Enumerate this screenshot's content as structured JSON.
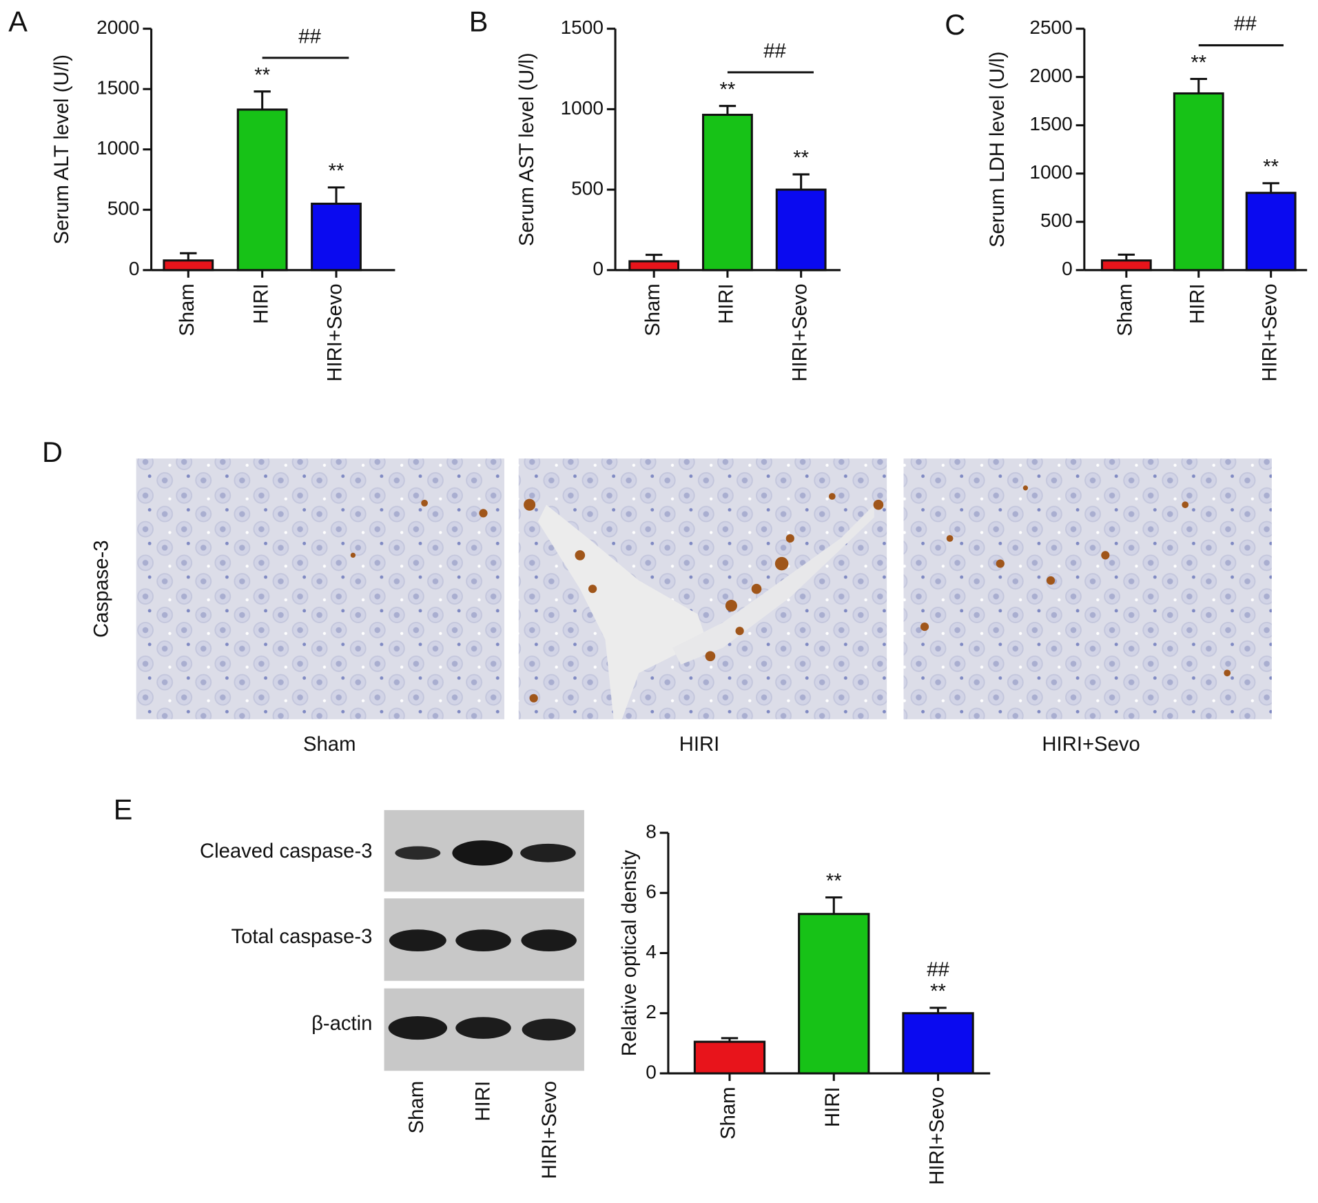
{
  "panels": [
    "A",
    "B",
    "C",
    "D",
    "E"
  ],
  "histology": {
    "row_label": "Caspase-3",
    "groups": [
      "Sham",
      "HIRI",
      "HIRI+Sevo"
    ]
  },
  "blot": {
    "rows": [
      "Cleaved caspase-3",
      "Total caspase-3",
      "β-actin"
    ],
    "lanes": [
      "Sham",
      "HIRI",
      "HIRI+Sevo"
    ]
  },
  "chart_data": [
    {
      "type": "bar",
      "ylabel": "Serum ALT level (U/l)",
      "categories": [
        "Sham",
        "HIRI",
        "HIRI+Sevo"
      ],
      "values": [
        80,
        1330,
        550
      ],
      "errors": [
        60,
        150,
        135
      ],
      "colors": [
        "#e8141b",
        "#17c217",
        "#0a0af0"
      ],
      "ylim": [
        0,
        2000
      ],
      "yticks": [
        0,
        500,
        1000,
        1500,
        2000
      ],
      "annotations": [
        null,
        "**",
        "**"
      ],
      "bracket": {
        "label": "##",
        "categories": [
          "HIRI",
          "HIRI+Sevo"
        ]
      }
    },
    {
      "type": "bar",
      "ylabel": "Serum AST level (U/l)",
      "categories": [
        "Sham",
        "HIRI",
        "HIRI+Sevo"
      ],
      "values": [
        55,
        965,
        500
      ],
      "errors": [
        40,
        55,
        95
      ],
      "colors": [
        "#e8141b",
        "#17c217",
        "#0a0af0"
      ],
      "ylim": [
        0,
        1500
      ],
      "yticks": [
        0,
        500,
        1000,
        1500
      ],
      "annotations": [
        null,
        "**",
        "**"
      ],
      "bracket": {
        "label": "##",
        "categories": [
          "HIRI",
          "HIRI+Sevo"
        ]
      }
    },
    {
      "type": "bar",
      "ylabel": "Serum LDH level (U/l)",
      "categories": [
        "Sham",
        "HIRI",
        "HIRI+Sevo"
      ],
      "values": [
        100,
        1830,
        800
      ],
      "errors": [
        60,
        150,
        100
      ],
      "colors": [
        "#e8141b",
        "#17c217",
        "#0a0af0"
      ],
      "ylim": [
        0,
        2500
      ],
      "yticks": [
        0,
        500,
        1000,
        1500,
        2000,
        2500
      ],
      "annotations": [
        null,
        "**",
        "**"
      ],
      "bracket": {
        "label": "##",
        "categories": [
          "HIRI",
          "HIRI+Sevo"
        ]
      }
    },
    {
      "type": "bar",
      "ylabel": "Relative optical density",
      "categories": [
        "Sham",
        "HIRI",
        "HIRI+Sevo"
      ],
      "values": [
        1.05,
        5.3,
        2.0
      ],
      "errors": [
        0.12,
        0.55,
        0.18
      ],
      "colors": [
        "#e8141b",
        "#17c217",
        "#0a0af0"
      ],
      "ylim": [
        0,
        8
      ],
      "yticks": [
        0,
        2,
        4,
        6,
        8
      ],
      "annotations": [
        null,
        "**",
        "**"
      ],
      "hash_annotations": [
        null,
        null,
        "##"
      ]
    }
  ]
}
